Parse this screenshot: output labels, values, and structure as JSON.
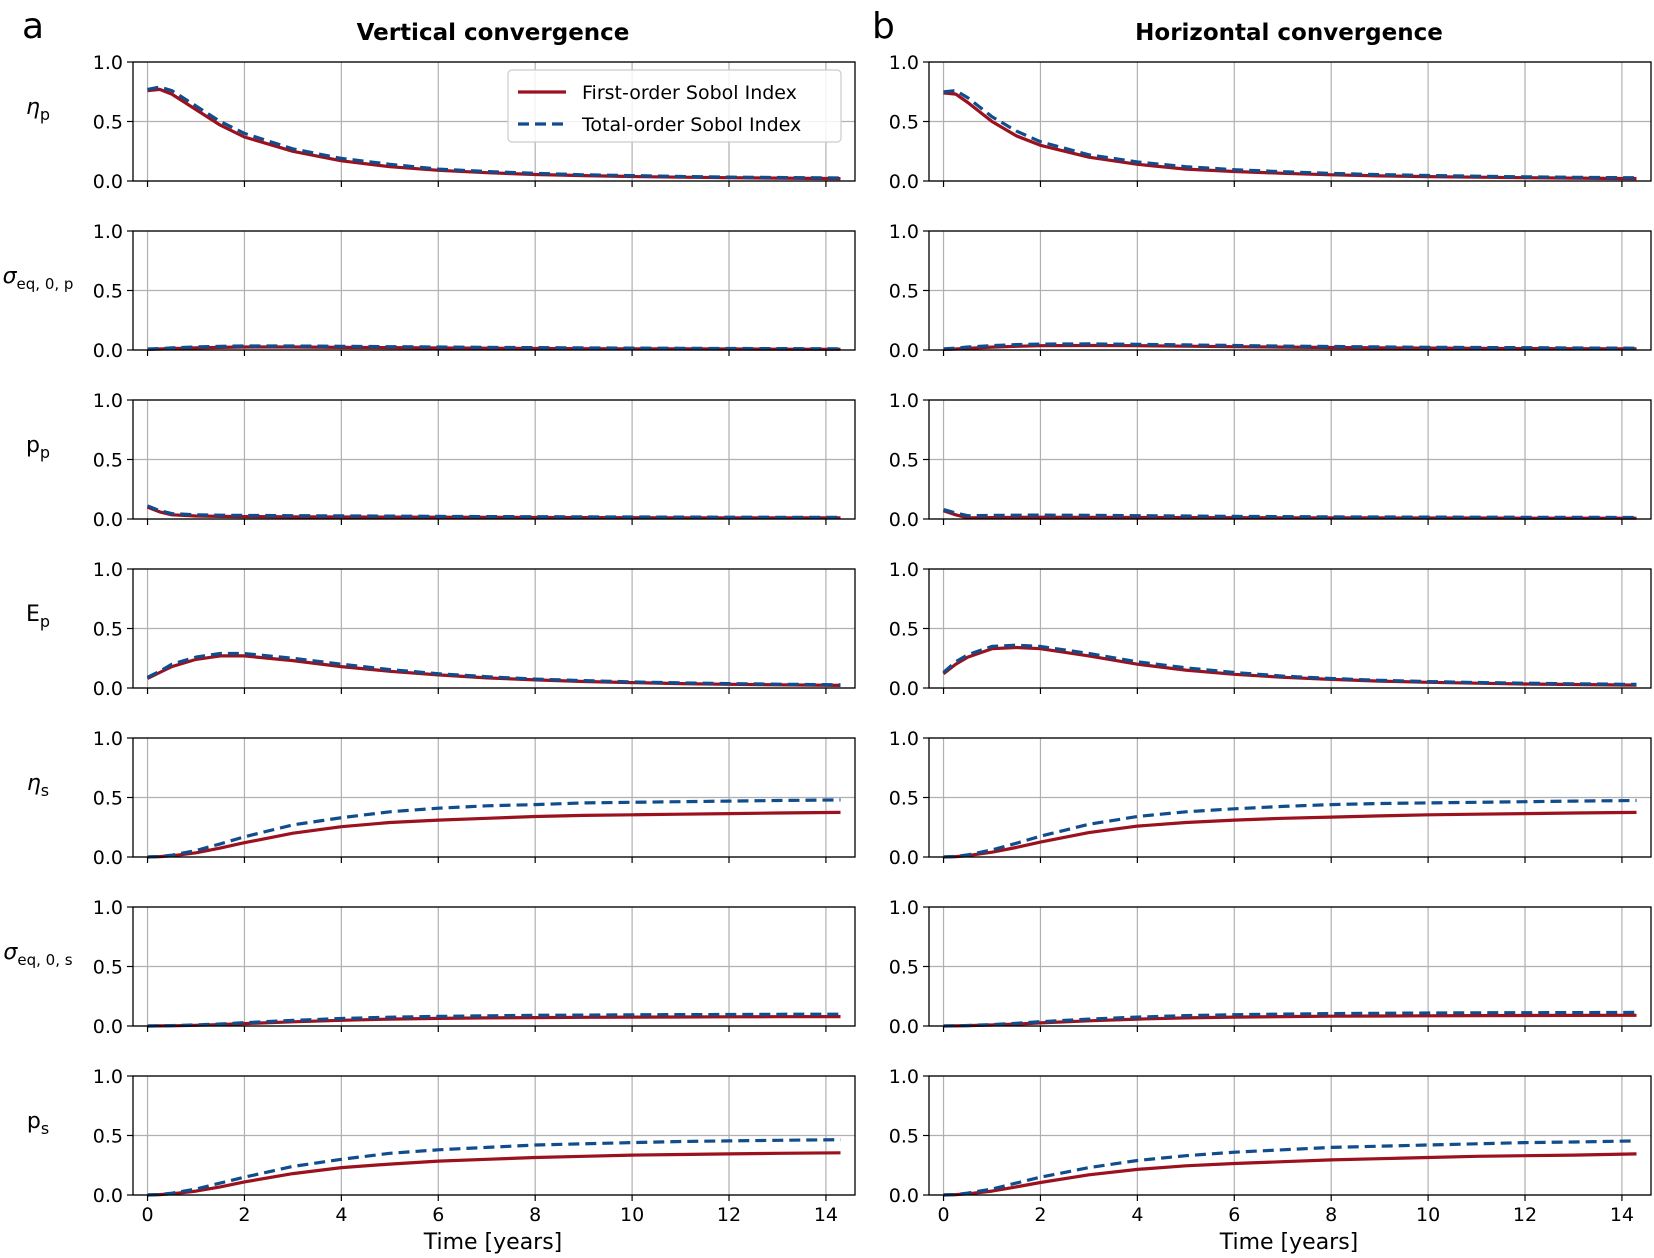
{
  "panel_letters": [
    "a",
    "b"
  ],
  "panel_titles": [
    "Vertical convergence",
    "Horizontal convergence"
  ],
  "row_labels": [
    {
      "sym": "η",
      "sub": "p"
    },
    {
      "sym": "σ",
      "sub": "eq, 0, p"
    },
    {
      "sym": "p",
      "sub": "p"
    },
    {
      "sym": "E",
      "sub": "p"
    },
    {
      "sym": "η",
      "sub": "s"
    },
    {
      "sym": "σ",
      "sub": "eq, 0, s"
    },
    {
      "sym": "p",
      "sub": "s"
    }
  ],
  "xlabel": "Time [years]",
  "legend": {
    "first_order": "First-order Sobol Index",
    "total_order": "Total-order Sobol Index"
  },
  "colors": {
    "first_order": "#9b111e",
    "total_order": "#114d8c",
    "grid": "#b0b0b0"
  },
  "chart_data": {
    "type": "line",
    "xlim": [
      -0.3,
      14.6
    ],
    "ylim": [
      0,
      1.0
    ],
    "xticks": [
      0,
      2,
      4,
      6,
      8,
      10,
      12,
      14
    ],
    "yticks": [
      "0.0",
      "0.5",
      "1.0"
    ],
    "grid": true,
    "legend_position": "upper-right of first panel",
    "x": [
      0,
      0.25,
      0.5,
      1,
      1.5,
      2,
      3,
      4,
      5,
      6,
      7,
      8,
      9,
      10,
      11,
      12,
      13,
      14.3
    ],
    "columns": [
      {
        "title": "Vertical convergence",
        "rows": [
          {
            "param": "η_p",
            "first": [
              0.76,
              0.77,
              0.73,
              0.6,
              0.47,
              0.37,
              0.25,
              0.17,
              0.12,
              0.09,
              0.07,
              0.055,
              0.045,
              0.038,
              0.032,
              0.028,
              0.024,
              0.02
            ],
            "total": [
              0.77,
              0.79,
              0.76,
              0.63,
              0.5,
              0.4,
              0.27,
              0.19,
              0.14,
              0.1,
              0.08,
              0.065,
              0.052,
              0.045,
              0.038,
              0.033,
              0.029,
              0.025
            ]
          },
          {
            "param": "σ_eq,0,p",
            "first": [
              0.005,
              0.008,
              0.012,
              0.018,
              0.022,
              0.025,
              0.025,
              0.022,
              0.02,
              0.017,
              0.015,
              0.013,
              0.011,
              0.01,
              0.009,
              0.008,
              0.007,
              0.006
            ],
            "total": [
              0.008,
              0.012,
              0.018,
              0.026,
              0.031,
              0.034,
              0.034,
              0.031,
              0.028,
              0.025,
              0.022,
              0.02,
              0.018,
              0.016,
              0.014,
              0.013,
              0.012,
              0.01
            ]
          },
          {
            "param": "p_p",
            "first": [
              0.1,
              0.06,
              0.035,
              0.025,
              0.022,
              0.02,
              0.018,
              0.017,
              0.016,
              0.015,
              0.014,
              0.013,
              0.012,
              0.011,
              0.01,
              0.01,
              0.009,
              0.009
            ],
            "total": [
              0.11,
              0.07,
              0.045,
              0.035,
              0.032,
              0.03,
              0.028,
              0.026,
              0.024,
              0.022,
              0.02,
              0.019,
              0.018,
              0.017,
              0.016,
              0.015,
              0.014,
              0.014
            ]
          },
          {
            "param": "E_p",
            "first": [
              0.08,
              0.13,
              0.18,
              0.24,
              0.27,
              0.27,
              0.23,
              0.18,
              0.14,
              0.11,
              0.085,
              0.068,
              0.055,
              0.045,
              0.037,
              0.031,
              0.027,
              0.022
            ],
            "total": [
              0.09,
              0.14,
              0.2,
              0.26,
              0.29,
              0.29,
              0.25,
              0.2,
              0.155,
              0.12,
              0.095,
              0.075,
              0.062,
              0.051,
              0.043,
              0.037,
              0.032,
              0.027
            ]
          },
          {
            "param": "η_s",
            "first": [
              0,
              0.003,
              0.01,
              0.035,
              0.075,
              0.12,
              0.2,
              0.255,
              0.29,
              0.31,
              0.325,
              0.34,
              0.35,
              0.355,
              0.36,
              0.365,
              0.37,
              0.375
            ],
            "total": [
              0,
              0.004,
              0.015,
              0.055,
              0.11,
              0.17,
              0.27,
              0.33,
              0.38,
              0.41,
              0.43,
              0.44,
              0.455,
              0.46,
              0.465,
              0.47,
              0.475,
              0.48
            ]
          },
          {
            "param": "σ_eq,0,s",
            "first": [
              0,
              0.001,
              0.002,
              0.006,
              0.012,
              0.02,
              0.035,
              0.048,
              0.058,
              0.064,
              0.068,
              0.071,
              0.073,
              0.075,
              0.076,
              0.077,
              0.078,
              0.079
            ],
            "total": [
              0,
              0.001,
              0.003,
              0.009,
              0.017,
              0.028,
              0.047,
              0.063,
              0.074,
              0.081,
              0.086,
              0.09,
              0.092,
              0.094,
              0.096,
              0.097,
              0.098,
              0.099
            ]
          },
          {
            "param": "p_s",
            "first": [
              0,
              0.003,
              0.01,
              0.033,
              0.068,
              0.11,
              0.18,
              0.23,
              0.26,
              0.285,
              0.3,
              0.315,
              0.325,
              0.335,
              0.34,
              0.345,
              0.35,
              0.355
            ],
            "total": [
              0,
              0.004,
              0.015,
              0.05,
              0.1,
              0.15,
              0.24,
              0.3,
              0.35,
              0.38,
              0.4,
              0.42,
              0.43,
              0.44,
              0.45,
              0.455,
              0.46,
              0.465
            ]
          }
        ]
      },
      {
        "title": "Horizontal convergence",
        "rows": [
          {
            "param": "η_p",
            "first": [
              0.74,
              0.73,
              0.66,
              0.5,
              0.38,
              0.3,
              0.2,
              0.14,
              0.1,
              0.08,
              0.065,
              0.052,
              0.043,
              0.037,
              0.032,
              0.028,
              0.024,
              0.02
            ],
            "total": [
              0.75,
              0.76,
              0.7,
              0.54,
              0.42,
              0.33,
              0.22,
              0.16,
              0.12,
              0.095,
              0.078,
              0.064,
              0.054,
              0.046,
              0.04,
              0.035,
              0.031,
              0.027
            ]
          },
          {
            "param": "σ_eq,0,p",
            "first": [
              0.005,
              0.008,
              0.014,
              0.024,
              0.031,
              0.036,
              0.038,
              0.036,
              0.032,
              0.028,
              0.024,
              0.021,
              0.018,
              0.016,
              0.014,
              0.012,
              0.011,
              0.01
            ],
            "total": [
              0.01,
              0.016,
              0.025,
              0.037,
              0.045,
              0.05,
              0.051,
              0.048,
              0.043,
              0.038,
              0.033,
              0.029,
              0.026,
              0.023,
              0.021,
              0.019,
              0.017,
              0.015
            ]
          },
          {
            "param": "p_p",
            "first": [
              0.07,
              0.035,
              0.01,
              0.012,
              0.014,
              0.015,
              0.014,
              0.013,
              0.012,
              0.011,
              0.01,
              0.009,
              0.009,
              0.008,
              0.008,
              0.007,
              0.007,
              0.007
            ],
            "total": [
              0.08,
              0.05,
              0.028,
              0.03,
              0.032,
              0.033,
              0.031,
              0.028,
              0.025,
              0.022,
              0.02,
              0.018,
              0.017,
              0.016,
              0.015,
              0.014,
              0.014,
              0.013
            ]
          },
          {
            "param": "E_p",
            "first": [
              0.12,
              0.2,
              0.26,
              0.33,
              0.34,
              0.33,
              0.27,
              0.2,
              0.15,
              0.115,
              0.09,
              0.072,
              0.058,
              0.048,
              0.04,
              0.034,
              0.029,
              0.024
            ],
            "total": [
              0.13,
              0.22,
              0.28,
              0.35,
              0.36,
              0.35,
              0.29,
              0.22,
              0.17,
              0.13,
              0.1,
              0.08,
              0.065,
              0.054,
              0.046,
              0.04,
              0.035,
              0.03
            ]
          },
          {
            "param": "η_s",
            "first": [
              0,
              0.003,
              0.012,
              0.04,
              0.08,
              0.125,
              0.205,
              0.26,
              0.29,
              0.31,
              0.325,
              0.335,
              0.345,
              0.355,
              0.36,
              0.365,
              0.37,
              0.375
            ],
            "total": [
              0,
              0.005,
              0.018,
              0.06,
              0.115,
              0.175,
              0.275,
              0.34,
              0.38,
              0.405,
              0.425,
              0.44,
              0.45,
              0.455,
              0.46,
              0.465,
              0.47,
              0.475
            ]
          },
          {
            "param": "σ_eq,0,s",
            "first": [
              0,
              0.001,
              0.003,
              0.008,
              0.016,
              0.026,
              0.044,
              0.058,
              0.068,
              0.075,
              0.079,
              0.082,
              0.084,
              0.086,
              0.087,
              0.088,
              0.089,
              0.09
            ],
            "total": [
              0,
              0.002,
              0.004,
              0.012,
              0.023,
              0.036,
              0.058,
              0.075,
              0.087,
              0.095,
              0.1,
              0.104,
              0.107,
              0.109,
              0.111,
              0.112,
              0.113,
              0.114
            ]
          },
          {
            "param": "p_s",
            "first": [
              0,
              0.003,
              0.01,
              0.033,
              0.068,
              0.105,
              0.17,
              0.215,
              0.245,
              0.265,
              0.28,
              0.295,
              0.305,
              0.315,
              0.325,
              0.33,
              0.335,
              0.345
            ],
            "total": [
              0,
              0.004,
              0.016,
              0.05,
              0.1,
              0.15,
              0.23,
              0.29,
              0.33,
              0.36,
              0.38,
              0.4,
              0.41,
              0.42,
              0.43,
              0.44,
              0.445,
              0.455
            ]
          }
        ]
      }
    ]
  }
}
